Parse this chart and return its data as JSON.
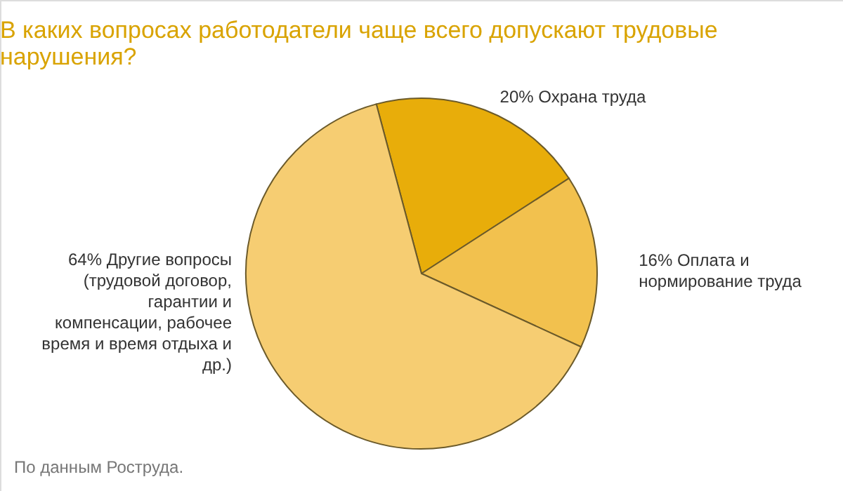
{
  "chart_data": {
    "type": "pie",
    "title": "В каких вопросах работодатели чаще всего допускают трудовые нарушения?",
    "categories": [
      "Охрана труда",
      "Оплата и нормирование труда",
      "Другие вопросы (трудовой договор, гарантии и компенсации, рабочее время и время отдыха и др.)"
    ],
    "values": [
      20,
      16,
      64
    ],
    "value_labels": [
      "20%",
      "16%",
      "64%"
    ],
    "colors": [
      "#e8ad0a",
      "#f2c14e",
      "#f6cd72"
    ],
    "legend": false,
    "annotations": [
      "По данным Роструда."
    ]
  }
}
